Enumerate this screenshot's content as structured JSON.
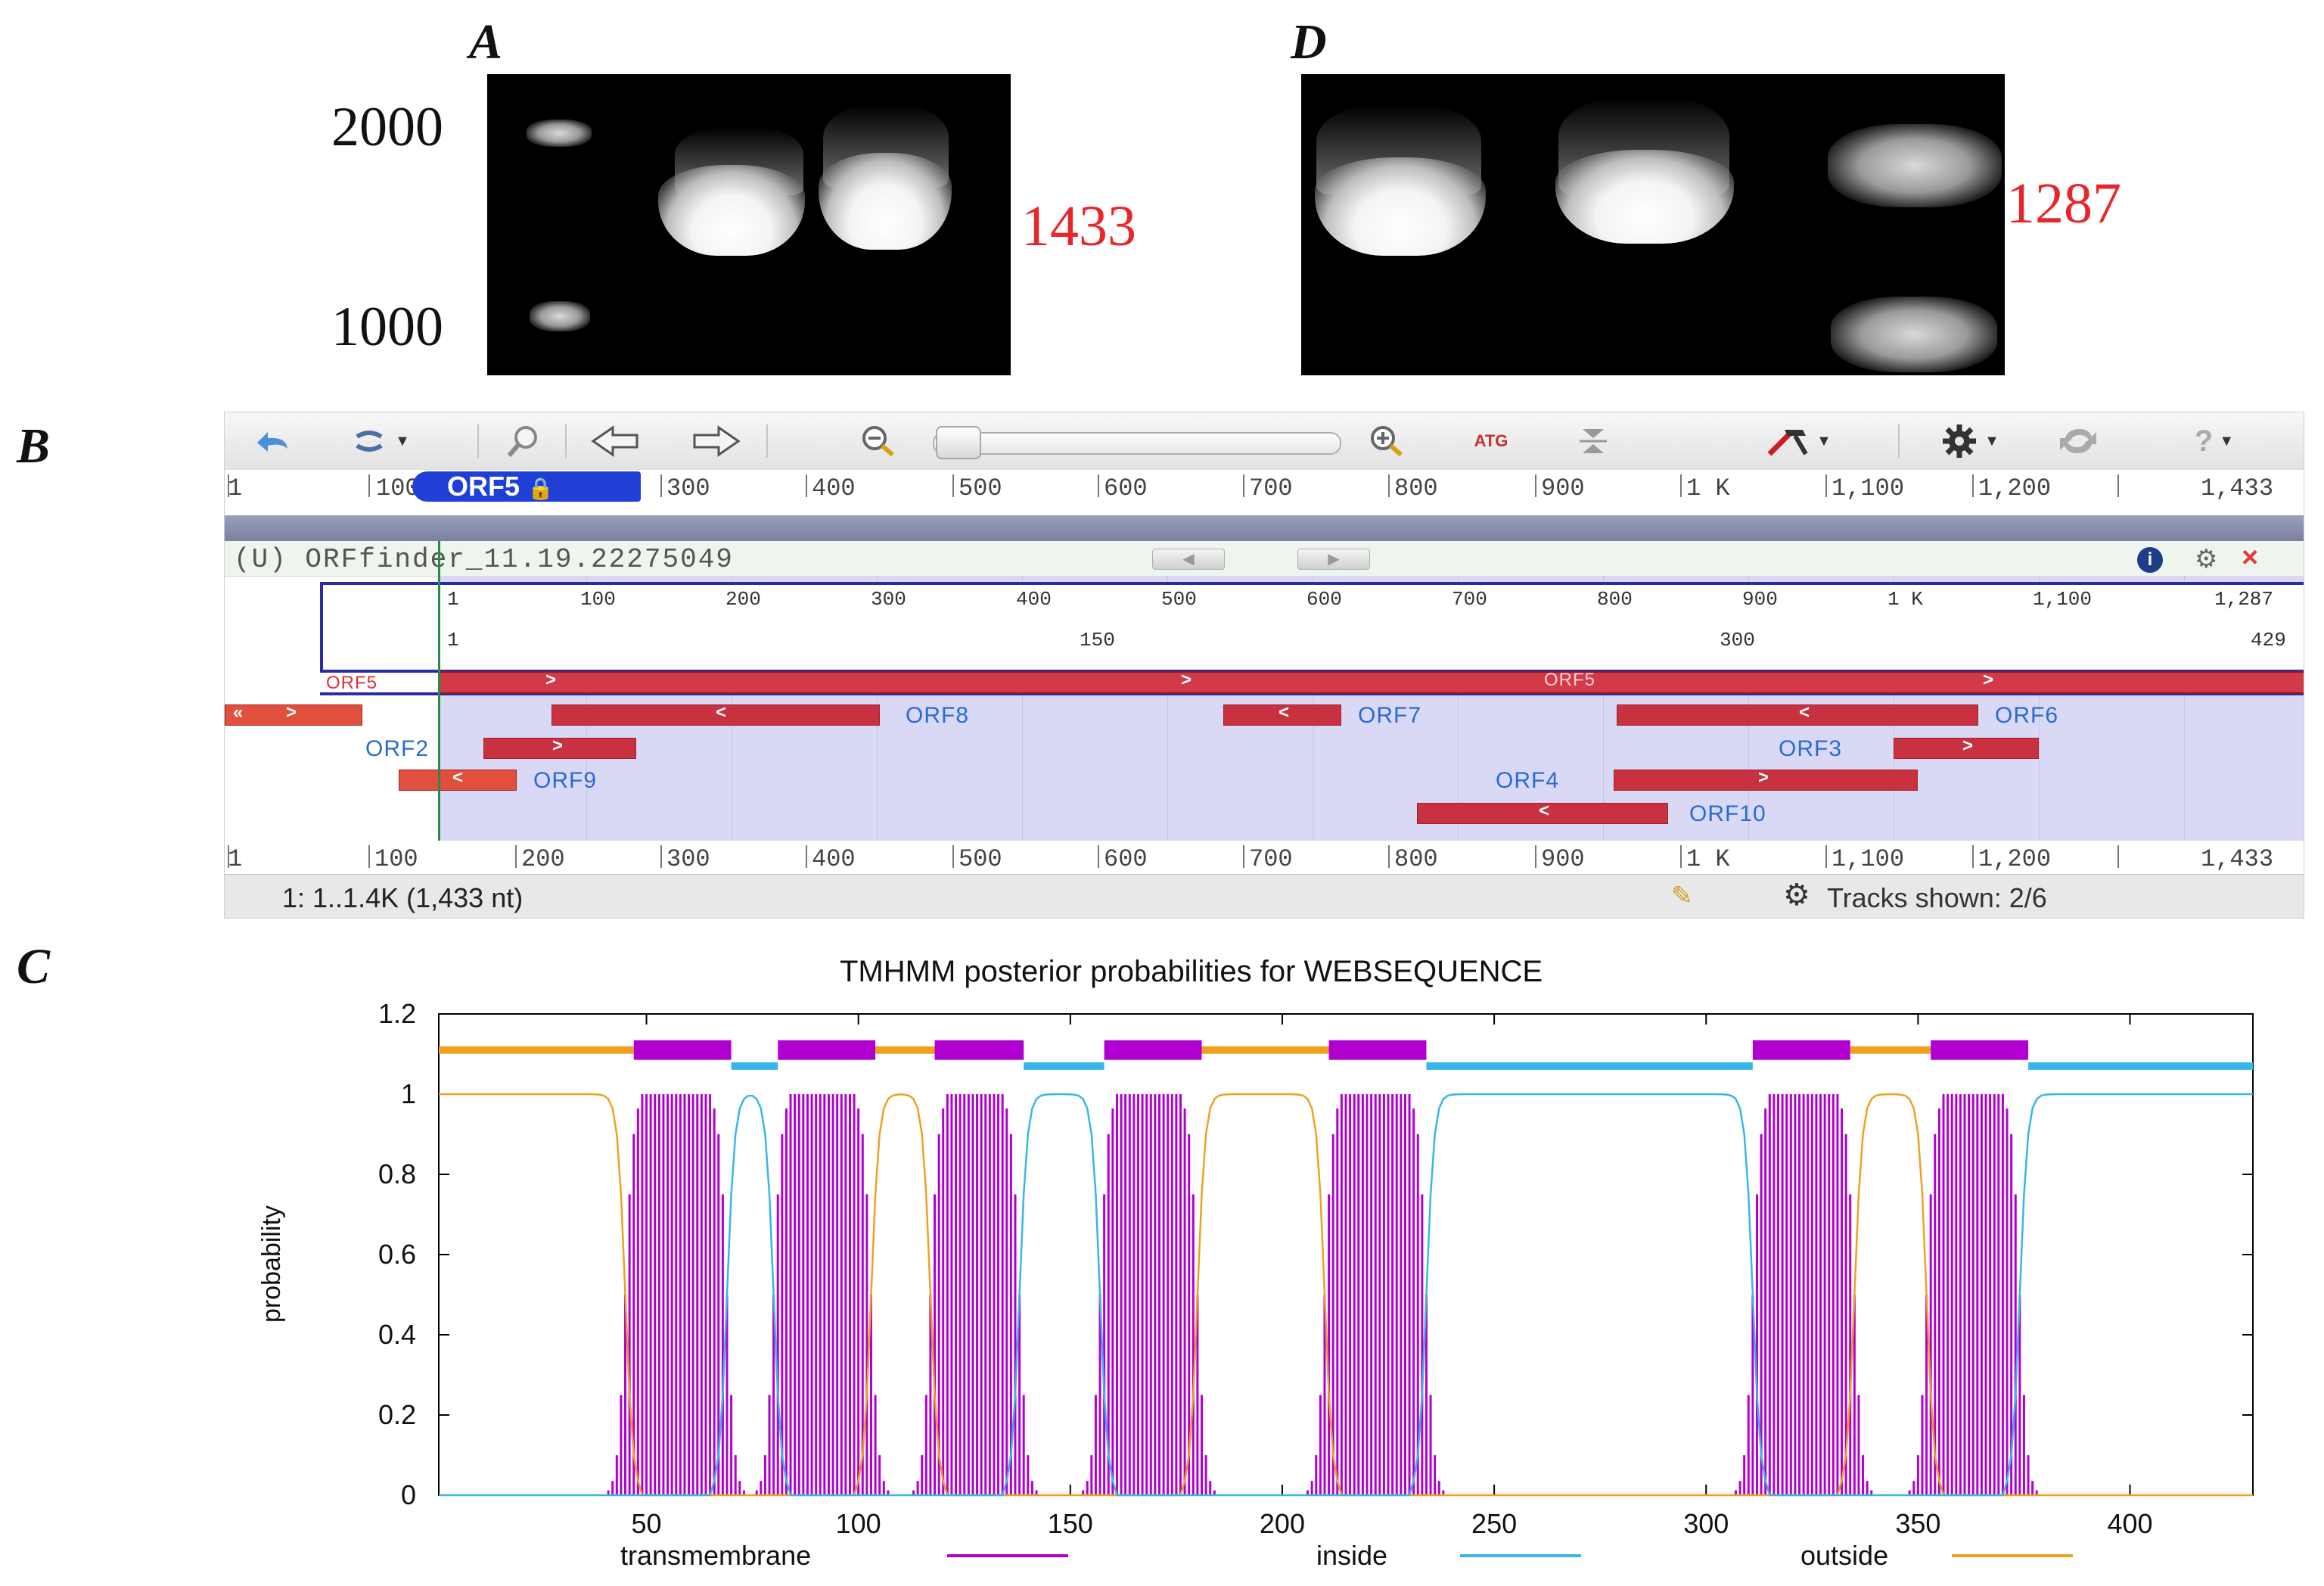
{
  "panels": {
    "a": "A",
    "b": "B",
    "c": "C",
    "d": "D"
  },
  "gel_a": {
    "marker_upper": "2000",
    "marker_lower": "1000",
    "product_size": "1433"
  },
  "gel_d": {
    "product_size": "1287"
  },
  "browser": {
    "toolbar": {
      "icons": [
        "undo-icon",
        "link-icon",
        "search-icon",
        "back-arrow-icon",
        "forward-arrow-icon",
        "zoom-out-icon",
        "zoom-slider",
        "zoom-in-icon",
        "atg-icon",
        "collapse-icon",
        "tools-icon",
        "gear-icon",
        "refresh-icon",
        "help-icon"
      ],
      "atg_label": "ATG",
      "help_label": "?"
    },
    "top_ruler": [
      "1",
      "100",
      "300",
      "400",
      "500",
      "600",
      "700",
      "800",
      "900",
      "1 K",
      "1,100",
      "1,200",
      "1,433"
    ],
    "bottom_ruler": [
      "1",
      "100",
      "200",
      "300",
      "400",
      "500",
      "600",
      "700",
      "800",
      "900",
      "1 K",
      "1,100",
      "1,200",
      "1,433"
    ],
    "selection_badge": "ORF5",
    "track_title": "(U) ORFfinder_11.19.22275049",
    "inner_ruler_nt": [
      "1",
      "100",
      "200",
      "300",
      "400",
      "500",
      "600",
      "700",
      "800",
      "900",
      "1 K",
      "1,100",
      "1,287"
    ],
    "inner_ruler_aa": [
      "1",
      "150",
      "300",
      "429"
    ],
    "orfs": {
      "orf5_left": "ORF5",
      "orf5_center": "ORF5",
      "orf8": "ORF8",
      "orf7": "ORF7",
      "orf6": "ORF6",
      "orf2": "ORF2",
      "orf3": "ORF3",
      "orf9": "ORF9",
      "orf4": "ORF4",
      "orf10": "ORF10"
    },
    "status_range": "1: 1..1.4K (1,433 nt)",
    "tracks_shown": "Tracks shown: 2/6"
  },
  "chart_data": {
    "type": "line",
    "title": "TMHMM posterior probabilities for WEBSEQUENCE",
    "xlabel": "",
    "ylabel": "probability",
    "xlim": [
      1,
      429
    ],
    "ylim": [
      0,
      1.2
    ],
    "x_ticks": [
      50,
      100,
      150,
      200,
      250,
      300,
      350,
      400
    ],
    "y_ticks": [
      0,
      0.2,
      0.4,
      0.6,
      0.8,
      1,
      1.2
    ],
    "y_tick_labels": [
      "0",
      "0.2",
      "0.4",
      "0.6",
      "0.8",
      "1",
      "1.2"
    ],
    "legend": [
      {
        "name": "transmembrane",
        "color": "#b000d0"
      },
      {
        "name": "inside",
        "color": "#38b6e8"
      },
      {
        "name": "outside",
        "color": "#f0a020"
      }
    ],
    "topology": [
      {
        "type": "outside",
        "start": 1,
        "end": 46
      },
      {
        "type": "transmembrane",
        "start": 47,
        "end": 69
      },
      {
        "type": "inside",
        "start": 70,
        "end": 80
      },
      {
        "type": "transmembrane",
        "start": 81,
        "end": 103
      },
      {
        "type": "outside",
        "start": 104,
        "end": 117
      },
      {
        "type": "transmembrane",
        "start": 118,
        "end": 138
      },
      {
        "type": "inside",
        "start": 139,
        "end": 157
      },
      {
        "type": "transmembrane",
        "start": 158,
        "end": 180
      },
      {
        "type": "outside",
        "start": 181,
        "end": 210
      },
      {
        "type": "transmembrane",
        "start": 211,
        "end": 233
      },
      {
        "type": "inside",
        "start": 234,
        "end": 310
      },
      {
        "type": "transmembrane",
        "start": 311,
        "end": 333
      },
      {
        "type": "outside",
        "start": 334,
        "end": 352
      },
      {
        "type": "transmembrane",
        "start": 353,
        "end": 375
      },
      {
        "type": "inside",
        "start": 376,
        "end": 429
      }
    ],
    "tm_helices": [
      {
        "start": 44,
        "end": 70
      },
      {
        "start": 79,
        "end": 104
      },
      {
        "start": 116,
        "end": 139
      },
      {
        "start": 156,
        "end": 181
      },
      {
        "start": 209,
        "end": 235
      },
      {
        "start": 310,
        "end": 336
      },
      {
        "start": 351,
        "end": 375
      }
    ]
  }
}
